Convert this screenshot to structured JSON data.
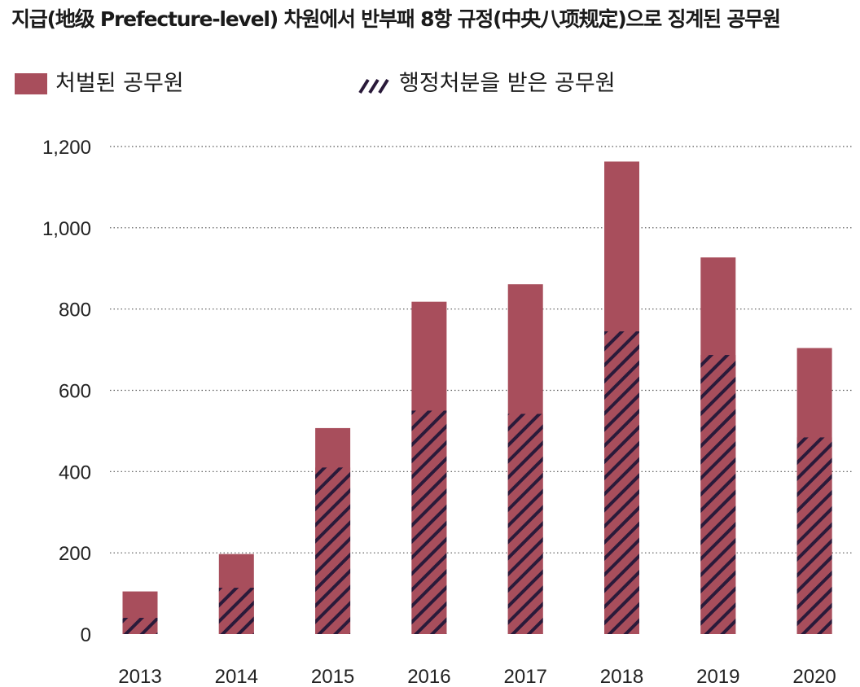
{
  "chart_data": {
    "type": "bar",
    "stacked": false,
    "overlapping": true,
    "title": "지급(地级 Prefecture-level) 차원에서 반부패 8항 규정(中央八项规定)으로 징계된 공무원",
    "categories": [
      "2013",
      "2014",
      "2015",
      "2016",
      "2017",
      "2018",
      "2019",
      "2020"
    ],
    "series": [
      {
        "name": "처벌된 공무원",
        "color": "#a84e5c",
        "pattern": "solid",
        "values": [
          105,
          197,
          507,
          818,
          861,
          1163,
          927,
          704
        ]
      },
      {
        "name": "행정처분을 받은 공무원",
        "color": "#2a1a3a",
        "pattern": "hatched",
        "values": [
          40,
          114,
          410,
          550,
          542,
          745,
          687,
          484
        ]
      }
    ],
    "yticks": [
      "0",
      "200",
      "400",
      "600",
      "800",
      "1,000",
      "1,200"
    ],
    "ylim": [
      0,
      1200
    ],
    "grid": true,
    "grid_style": "dotted",
    "legend_position": "top"
  }
}
